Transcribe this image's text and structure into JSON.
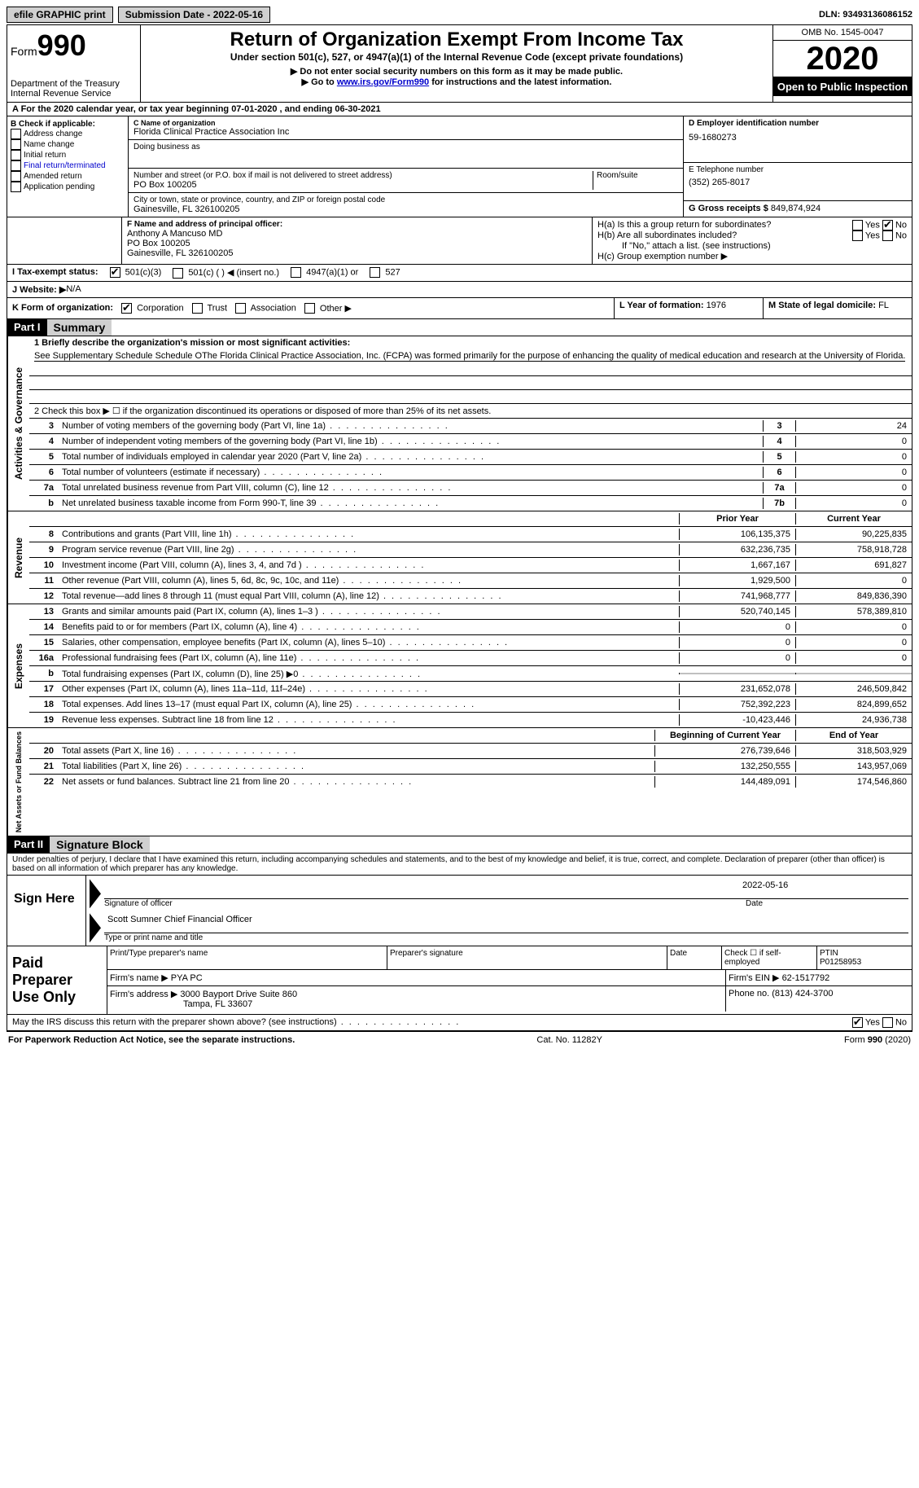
{
  "topbar": {
    "efile": "efile GRAPHIC print",
    "submission_label": "Submission Date - ",
    "submission_date": "2022-05-16",
    "dln_label": "DLN: ",
    "dln": "93493136086152"
  },
  "header": {
    "form_label": "Form",
    "form_number": "990",
    "dept": "Department of the Treasury\nInternal Revenue Service",
    "title": "Return of Organization Exempt From Income Tax",
    "subtitle": "Under section 501(c), 527, or 4947(a)(1) of the Internal Revenue Code (except private foundations)",
    "note1": "▶ Do not enter social security numbers on this form as it may be made public.",
    "note2_pre": "▶ Go to ",
    "note2_link": "www.irs.gov/Form990",
    "note2_post": " for instructions and the latest information.",
    "omb": "OMB No. 1545-0047",
    "year": "2020",
    "open": "Open to Public Inspection"
  },
  "period": {
    "text": "A For the 2020 calendar year, or tax year beginning 07-01-2020    , and ending 06-30-2021"
  },
  "boxB": {
    "label": "B Check if applicable:",
    "opts": [
      "Address change",
      "Name change",
      "Initial return",
      "Final return/terminated",
      "Amended return",
      "Application pending"
    ]
  },
  "boxC": {
    "name_label": "C Name of organization",
    "name": "Florida Clinical Practice Association Inc",
    "dba_label": "Doing business as",
    "addr_label": "Number and street (or P.O. box if mail is not delivered to street address)",
    "room_label": "Room/suite",
    "addr": "PO Box 100205",
    "city_label": "City or town, state or province, country, and ZIP or foreign postal code",
    "city": "Gainesville, FL  326100205"
  },
  "boxD": {
    "label": "D Employer identification number",
    "ein": "59-1680273"
  },
  "boxE": {
    "label": "E Telephone number",
    "phone": "(352) 265-8017"
  },
  "boxG": {
    "label": "G Gross receipts $ ",
    "amount": "849,874,924"
  },
  "boxF": {
    "label": "F Name and address of principal officer:",
    "name": "Anthony A Mancuso MD",
    "addr1": "PO Box 100205",
    "addr2": "Gainesville, FL  326100205"
  },
  "boxH": {
    "a_label": "H(a)  Is this a group return for subordinates?",
    "b_label": "H(b)  Are all subordinates included?",
    "b_note": "If \"No,\" attach a list. (see instructions)",
    "c_label": "H(c)  Group exemption number ▶",
    "yes": "Yes",
    "no": "No"
  },
  "boxI": {
    "label": "I  Tax-exempt status:",
    "o1": "501(c)(3)",
    "o2": "501(c) (  ) ◀ (insert no.)",
    "o3": "4947(a)(1) or",
    "o4": "527"
  },
  "boxJ": {
    "label": "J  Website: ▶  ",
    "value": "N/A"
  },
  "boxK": {
    "label": "K Form of organization:",
    "opts": [
      "Corporation",
      "Trust",
      "Association",
      "Other ▶"
    ]
  },
  "boxL": {
    "label": "L Year of formation: ",
    "value": "1976"
  },
  "boxM": {
    "label": "M State of legal domicile: ",
    "value": "FL"
  },
  "part1": {
    "header": "Part I",
    "title": "Summary",
    "q1_label": "1  Briefly describe the organization's mission or most significant activities:",
    "q1_text": "See Supplementary Schedule Schedule OThe Florida Clinical Practice Association, Inc. (FCPA) was formed primarily for the purpose of enhancing the quality of medical education and research at the University of Florida.",
    "q2": "2   Check this box ▶ ☐  if the organization discontinued its operations or disposed of more than 25% of its net assets."
  },
  "governance": {
    "label": "Activities & Governance",
    "rows": [
      {
        "n": "3",
        "label": "Number of voting members of the governing body (Part VI, line 1a)",
        "box": "3",
        "val": "24"
      },
      {
        "n": "4",
        "label": "Number of independent voting members of the governing body (Part VI, line 1b)",
        "box": "4",
        "val": "0"
      },
      {
        "n": "5",
        "label": "Total number of individuals employed in calendar year 2020 (Part V, line 2a)",
        "box": "5",
        "val": "0"
      },
      {
        "n": "6",
        "label": "Total number of volunteers (estimate if necessary)",
        "box": "6",
        "val": "0"
      },
      {
        "n": "7a",
        "label": "Total unrelated business revenue from Part VIII, column (C), line 12",
        "box": "7a",
        "val": "0"
      },
      {
        "n": "b",
        "label": "Net unrelated business taxable income from Form 990-T, line 39",
        "box": "7b",
        "val": "0"
      }
    ]
  },
  "revenue": {
    "label": "Revenue",
    "header_prior": "Prior Year",
    "header_current": "Current Year",
    "rows": [
      {
        "n": "8",
        "label": "Contributions and grants (Part VIII, line 1h)",
        "prior": "106,135,375",
        "curr": "90,225,835"
      },
      {
        "n": "9",
        "label": "Program service revenue (Part VIII, line 2g)",
        "prior": "632,236,735",
        "curr": "758,918,728"
      },
      {
        "n": "10",
        "label": "Investment income (Part VIII, column (A), lines 3, 4, and 7d )",
        "prior": "1,667,167",
        "curr": "691,827"
      },
      {
        "n": "11",
        "label": "Other revenue (Part VIII, column (A), lines 5, 6d, 8c, 9c, 10c, and 11e)",
        "prior": "1,929,500",
        "curr": "0"
      },
      {
        "n": "12",
        "label": "Total revenue—add lines 8 through 11 (must equal Part VIII, column (A), line 12)",
        "prior": "741,968,777",
        "curr": "849,836,390"
      }
    ]
  },
  "expenses": {
    "label": "Expenses",
    "rows": [
      {
        "n": "13",
        "label": "Grants and similar amounts paid (Part IX, column (A), lines 1–3 )",
        "prior": "520,740,145",
        "curr": "578,389,810"
      },
      {
        "n": "14",
        "label": "Benefits paid to or for members (Part IX, column (A), line 4)",
        "prior": "0",
        "curr": "0"
      },
      {
        "n": "15",
        "label": "Salaries, other compensation, employee benefits (Part IX, column (A), lines 5–10)",
        "prior": "0",
        "curr": "0"
      },
      {
        "n": "16a",
        "label": "Professional fundraising fees (Part IX, column (A), line 11e)",
        "prior": "0",
        "curr": "0"
      },
      {
        "n": "b",
        "label": "Total fundraising expenses (Part IX, column (D), line 25) ▶0",
        "prior": "",
        "curr": "",
        "shaded": true
      },
      {
        "n": "17",
        "label": "Other expenses (Part IX, column (A), lines 11a–11d, 11f–24e)",
        "prior": "231,652,078",
        "curr": "246,509,842"
      },
      {
        "n": "18",
        "label": "Total expenses. Add lines 13–17 (must equal Part IX, column (A), line 25)",
        "prior": "752,392,223",
        "curr": "824,899,652"
      },
      {
        "n": "19",
        "label": "Revenue less expenses. Subtract line 18 from line 12",
        "prior": "-10,423,446",
        "curr": "24,936,738"
      }
    ]
  },
  "netassets": {
    "label": "Net Assets or Fund Balances",
    "header_begin": "Beginning of Current Year",
    "header_end": "End of Year",
    "rows": [
      {
        "n": "20",
        "label": "Total assets (Part X, line 16)",
        "begin": "276,739,646",
        "end": "318,503,929"
      },
      {
        "n": "21",
        "label": "Total liabilities (Part X, line 26)",
        "begin": "132,250,555",
        "end": "143,957,069"
      },
      {
        "n": "22",
        "label": "Net assets or fund balances. Subtract line 21 from line 20",
        "begin": "144,489,091",
        "end": "174,546,860"
      }
    ]
  },
  "part2": {
    "header": "Part II",
    "title": "Signature Block",
    "penalty": "Under penalties of perjury, I declare that I have examined this return, including accompanying schedules and statements, and to the best of my knowledge and belief, it is true, correct, and complete. Declaration of preparer (other than officer) is based on all information of which preparer has any knowledge."
  },
  "sign": {
    "here": "Sign Here",
    "sig_label": "Signature of officer",
    "date_label": "Date",
    "date": "2022-05-16",
    "name": "Scott Sumner  Chief Financial Officer",
    "name_label": "Type or print name and title"
  },
  "preparer": {
    "here": "Paid Preparer Use Only",
    "h1": "Print/Type preparer's name",
    "h2": "Preparer's signature",
    "h3": "Date",
    "h4_pre": "Check ☐ if self-employed",
    "h5": "PTIN",
    "ptin": "P01258953",
    "firm_label": "Firm's name    ▶ ",
    "firm": "PYA PC",
    "ein_label": "Firm's EIN ▶ ",
    "ein": "62-1517792",
    "addr_label": "Firm's address ▶ ",
    "addr1": "3000 Bayport Drive Suite 860",
    "addr2": "Tampa, FL  33607",
    "phone_label": "Phone no. ",
    "phone": "(813) 424-3700"
  },
  "discuss": {
    "q": "May the IRS discuss this return with the preparer shown above? (see instructions)",
    "yes": "Yes",
    "no": "No"
  },
  "footer": {
    "left": "For Paperwork Reduction Act Notice, see the separate instructions.",
    "mid": "Cat. No. 11282Y",
    "right": "Form 990 (2020)"
  }
}
